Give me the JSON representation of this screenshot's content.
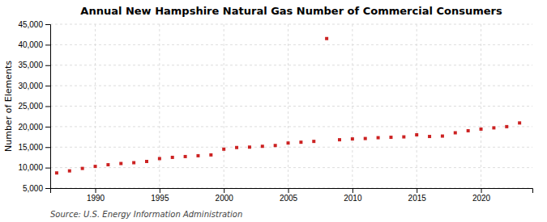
{
  "chart_data": {
    "type": "scatter",
    "title": "Annual New Hampshire Natural Gas Number of Commercial Consumers",
    "y_label": "Number of Elements",
    "source": "Source: U.S. Energy Information Administration",
    "color": "#cc2222",
    "marker": "square",
    "grid": true,
    "x": [
      1987,
      1988,
      1989,
      1990,
      1991,
      1992,
      1993,
      1994,
      1995,
      1996,
      1997,
      1998,
      1999,
      2000,
      2001,
      2002,
      2003,
      2004,
      2005,
      2006,
      2007,
      2008,
      2009,
      2010,
      2011,
      2012,
      2013,
      2014,
      2015,
      2016,
      2017,
      2018,
      2019,
      2020,
      2021,
      2022,
      2023
    ],
    "values": [
      8700,
      9200,
      9800,
      10300,
      10700,
      11000,
      11200,
      11500,
      12200,
      12500,
      12700,
      12900,
      13100,
      14500,
      14900,
      15000,
      15200,
      15400,
      16000,
      16200,
      16400,
      41500,
      16800,
      17000,
      17100,
      17300,
      17400,
      17500,
      18000,
      17600,
      17700,
      18500,
      19000,
      19400,
      19700,
      20000,
      20900
    ],
    "xlim": [
      1986.5,
      2024
    ],
    "xticks": [
      1990,
      1995,
      2000,
      2005,
      2010,
      2015,
      2020
    ],
    "ylim": [
      5000,
      45000
    ],
    "yticks": [
      {
        "value": 5000,
        "label": "5,000"
      },
      {
        "value": 10000,
        "label": "10,000"
      },
      {
        "value": 15000,
        "label": "15,000"
      },
      {
        "value": 20000,
        "label": "20,000"
      },
      {
        "value": 25000,
        "label": "25,000"
      },
      {
        "value": 30000,
        "label": "30,000"
      },
      {
        "value": 35000,
        "label": "35,000"
      },
      {
        "value": 40000,
        "label": "40,000"
      },
      {
        "value": 45000,
        "label": "45,000"
      }
    ]
  }
}
